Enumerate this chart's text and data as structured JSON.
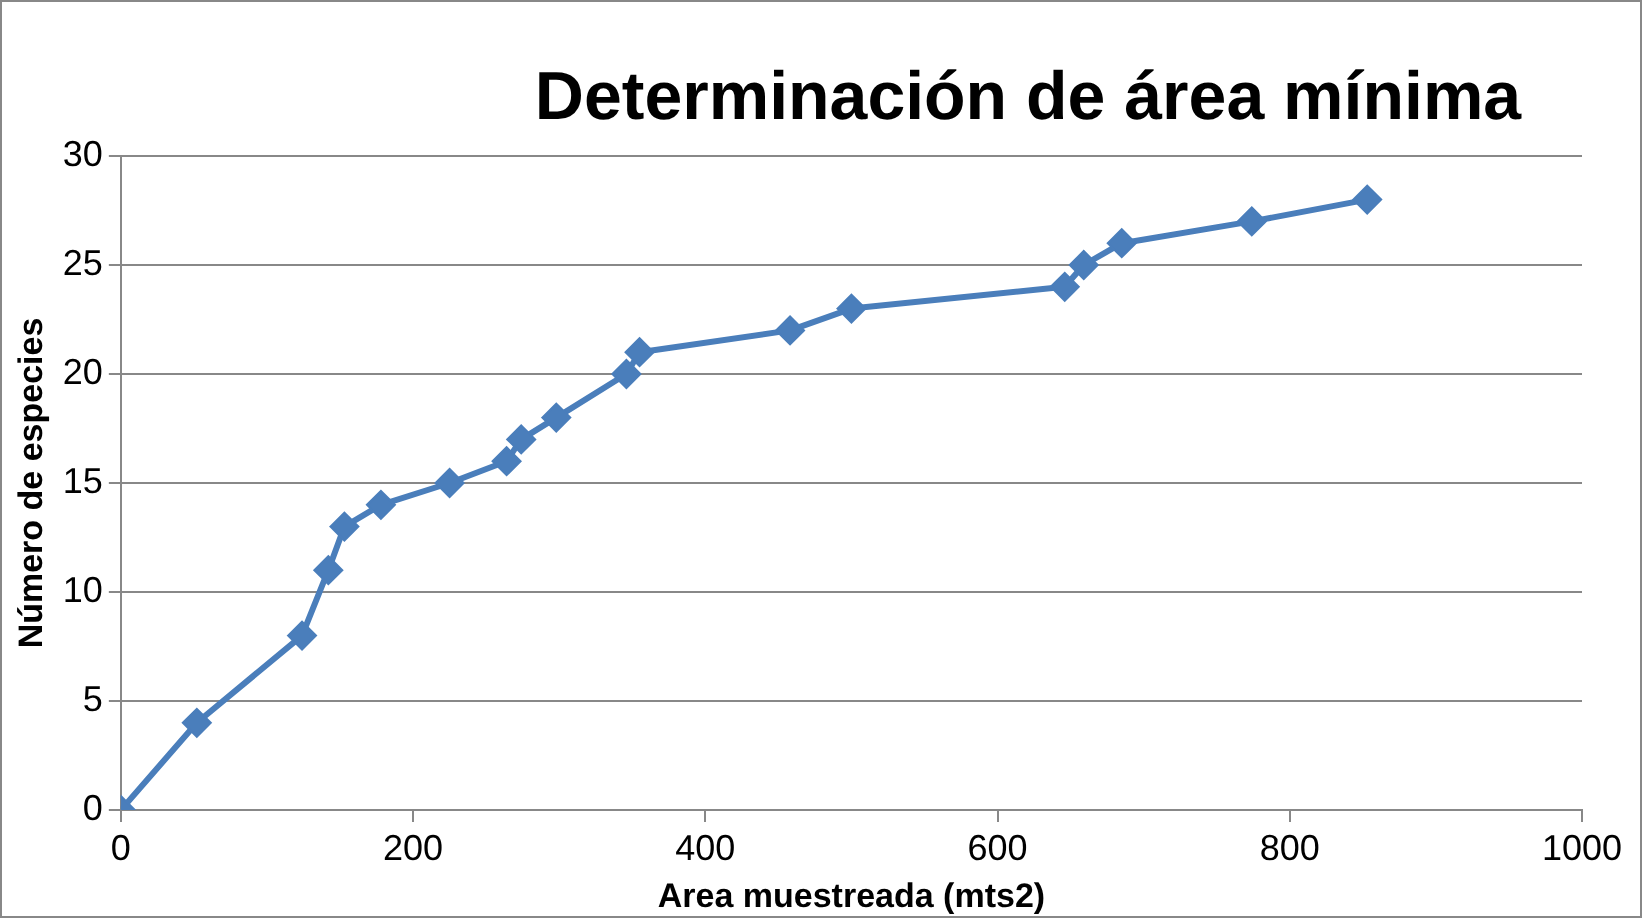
{
  "chart_data": {
    "type": "line",
    "title": "Determinación de área mínima",
    "xlabel": "Area muestreada (mts2)",
    "ylabel": "Número de especies",
    "x": [
      0,
      52,
      124,
      142,
      153,
      178,
      225,
      264,
      274,
      298,
      346,
      355,
      458,
      500,
      646,
      659,
      685,
      774,
      853
    ],
    "series": [
      {
        "color": "#4a7ebb",
        "values": [
          0,
          4,
          8,
          11,
          13,
          14,
          15,
          16,
          17,
          18,
          20,
          21,
          22,
          23,
          24,
          25,
          26,
          27,
          28
        ]
      }
    ],
    "xlim": [
      0,
      1000
    ],
    "xticks": [
      0,
      200,
      400,
      600,
      800,
      1000
    ],
    "ylim": [
      0,
      30
    ],
    "yticks": [
      0,
      5,
      10,
      15,
      20,
      25,
      30
    ],
    "grid": "y",
    "legend": false,
    "marker": "diamond",
    "line_style": "solid"
  }
}
